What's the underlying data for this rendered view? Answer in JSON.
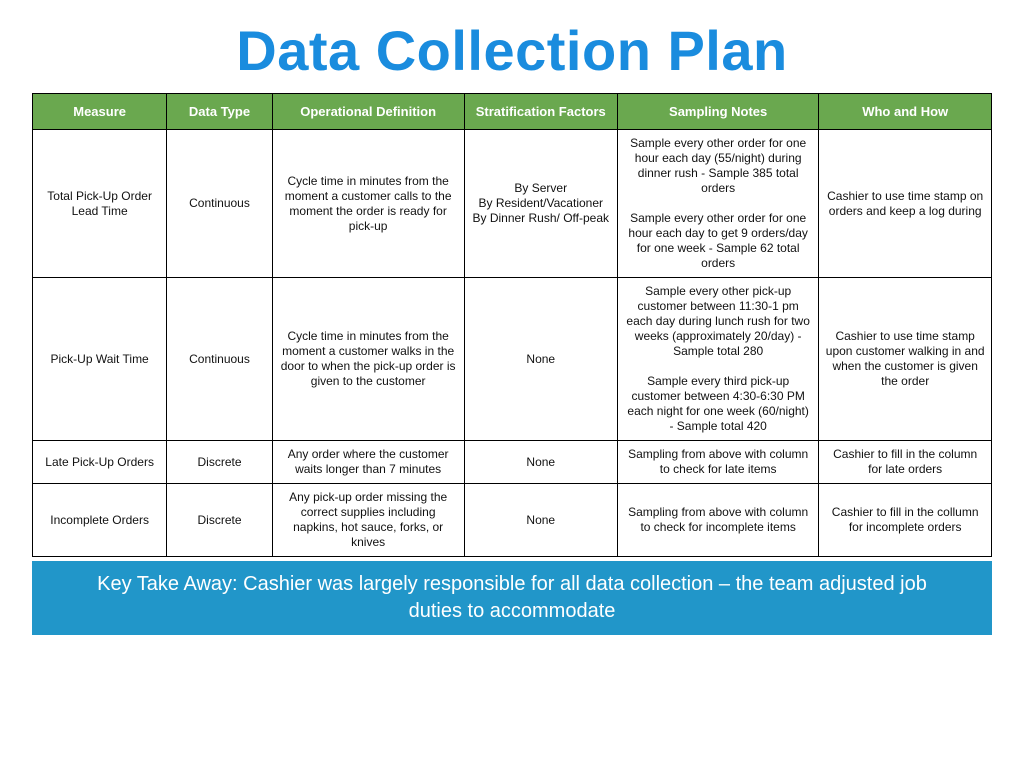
{
  "title": "Data Collection Plan",
  "colors": {
    "title": "#1a8cde",
    "header_bg": "#6aa84f",
    "header_text": "#ffffff",
    "border": "#000000",
    "footer_bg": "#2196c9",
    "footer_text": "#ffffff"
  },
  "table": {
    "columns": [
      {
        "label": "Measure",
        "width_pct": 14
      },
      {
        "label": "Data Type",
        "width_pct": 11
      },
      {
        "label": "Operational Definition",
        "width_pct": 20
      },
      {
        "label": "Stratification Factors",
        "width_pct": 16
      },
      {
        "label": "Sampling Notes",
        "width_pct": 21
      },
      {
        "label": "Who and How",
        "width_pct": 18
      }
    ],
    "rows": [
      {
        "measure": "Total Pick-Up Order Lead Time",
        "data_type": "Continuous",
        "op_def": "Cycle time in minutes from the moment a customer calls to the moment the order is ready for pick-up",
        "strat": "By Server\nBy Resident/Vacationer\nBy Dinner Rush/ Off-peak",
        "sampling": "Sample every other order for one hour each day (55/night) during dinner rush - Sample 385 total orders\n\nSample every other order for one hour each day to get 9 orders/day for one week - Sample 62 total orders",
        "who": "Cashier to use time stamp on orders and keep a log during"
      },
      {
        "measure": "Pick-Up Wait Time",
        "data_type": "Continuous",
        "op_def": "Cycle time in minutes from the moment a customer walks in the door to when the pick-up order is given to the customer",
        "strat": "None",
        "sampling": "Sample every other pick-up customer between 11:30-1 pm each day during lunch rush for two weeks (approximately 20/day) - Sample total 280\n\nSample every third pick-up customer between 4:30-6:30 PM each night for one week (60/night) - Sample total 420",
        "who": "Cashier to use time stamp upon customer walking in and when the customer is given the order"
      },
      {
        "measure": "Late Pick-Up Orders",
        "data_type": "Discrete",
        "op_def": "Any order where the customer waits longer than 7 minutes",
        "strat": "None",
        "sampling": "Sampling from above with column to check for late items",
        "who": "Cashier to fill in the column for late orders"
      },
      {
        "measure": "Incomplete Orders",
        "data_type": "Discrete",
        "op_def": "Any pick-up order missing the correct supplies including napkins, hot sauce, forks, or knives",
        "strat": "None",
        "sampling": "Sampling from above with column to check for incomplete items",
        "who": "Cashier to fill in the collumn for incomplete orders"
      }
    ]
  },
  "footer": "Key Take Away: Cashier was largely responsible for all data collection – the team adjusted job duties to accommodate"
}
